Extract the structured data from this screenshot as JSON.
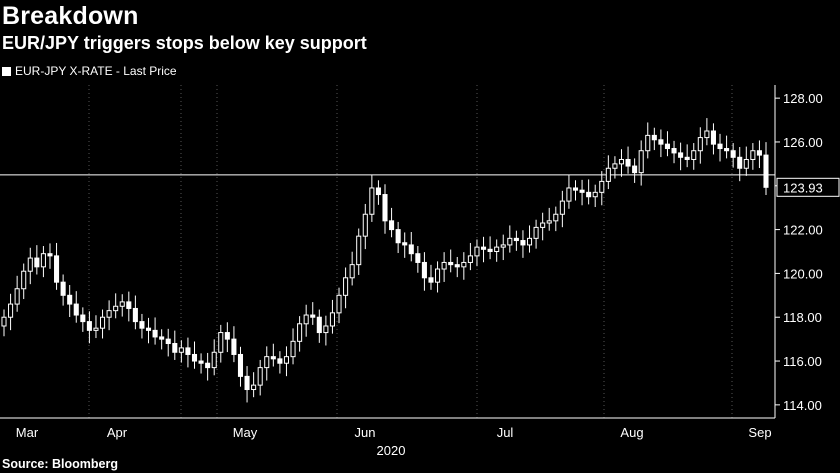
{
  "header": {
    "title": "Breakdown",
    "subtitle": "EUR/JPY triggers stops below key support"
  },
  "legend": {
    "label": "EUR-JPY X-RATE - Last Price"
  },
  "footer": {
    "source": "Source: Bloomberg"
  },
  "colors": {
    "background": "#000000",
    "foreground": "#ffffff",
    "grid": "#555555"
  },
  "chart_data": {
    "type": "candlestick",
    "title": "Breakdown",
    "subtitle": "EUR/JPY triggers stops below key support",
    "series_name": "EUR-JPY X-RATE - Last Price",
    "x_tick_labels": [
      "Mar",
      "Apr",
      "May",
      "Jun",
      "Jul",
      "Aug",
      "Sep"
    ],
    "x_year_label": "2020",
    "ylim": [
      113.4,
      128.6
    ],
    "y_ticks": [
      114,
      116,
      118,
      120,
      122,
      124,
      126,
      128
    ],
    "y_tick_labels": [
      "114.00",
      "116.00",
      "118.00",
      "120.00",
      "122.00",
      "124.00",
      "126.00",
      "128.00"
    ],
    "y_axis_side": "right",
    "grid": "vertical dotted",
    "support_level": 124.5,
    "last_price": 123.93,
    "last_price_label": "123.93",
    "candles_close": [
      118.0,
      118.6,
      119.3,
      120.1,
      120.7,
      120.3,
      120.9,
      120.8,
      119.6,
      119.0,
      118.6,
      118.1,
      117.8,
      117.4,
      117.5,
      118.0,
      118.3,
      118.5,
      118.7,
      118.4,
      117.8,
      117.5,
      117.4,
      117.1,
      117.0,
      116.8,
      116.4,
      116.6,
      116.3,
      116.0,
      115.9,
      115.7,
      116.4,
      117.3,
      117.0,
      116.3,
      115.3,
      114.7,
      114.9,
      115.7,
      116.2,
      116.1,
      115.9,
      116.2,
      116.9,
      117.7,
      118.1,
      118.0,
      117.3,
      117.6,
      118.2,
      119.0,
      119.8,
      120.4,
      121.7,
      122.7,
      123.9,
      123.6,
      122.4,
      122.0,
      121.4,
      121.3,
      120.9,
      120.5,
      119.8,
      119.6,
      120.2,
      120.5,
      120.4,
      120.3,
      120.5,
      120.8,
      121.2,
      121.1,
      121.0,
      121.2,
      121.3,
      121.6,
      121.5,
      121.3,
      121.6,
      122.1,
      122.3,
      122.4,
      122.7,
      123.3,
      123.9,
      123.8,
      123.7,
      123.5,
      123.7,
      124.2,
      124.8,
      125.0,
      125.2,
      124.9,
      124.6,
      125.6,
      126.3,
      126.1,
      125.9,
      125.7,
      125.5,
      125.3,
      125.2,
      125.6,
      126.2,
      126.5,
      125.9,
      125.7,
      125.6,
      125.3,
      124.8,
      125.2,
      125.6,
      125.4,
      123.93
    ],
    "candles_open": [
      117.6,
      118.0,
      118.6,
      119.3,
      120.1,
      120.7,
      120.3,
      120.9,
      120.8,
      119.6,
      119.0,
      118.6,
      118.1,
      117.8,
      117.4,
      117.5,
      118.0,
      118.3,
      118.5,
      118.7,
      118.4,
      117.8,
      117.5,
      117.4,
      117.1,
      117.0,
      116.8,
      116.4,
      116.6,
      116.3,
      116.0,
      115.9,
      115.7,
      116.4,
      117.3,
      117.0,
      116.3,
      115.3,
      114.7,
      114.9,
      115.7,
      116.2,
      116.1,
      115.9,
      116.2,
      116.9,
      117.7,
      118.1,
      118.0,
      117.3,
      117.6,
      118.2,
      119.0,
      119.8,
      120.4,
      121.7,
      122.7,
      123.9,
      123.6,
      122.4,
      122.0,
      121.4,
      121.3,
      120.9,
      120.5,
      119.8,
      119.6,
      120.2,
      120.5,
      120.4,
      120.3,
      120.5,
      120.8,
      121.2,
      121.1,
      121.0,
      121.2,
      121.3,
      121.6,
      121.5,
      121.3,
      121.6,
      122.1,
      122.3,
      122.4,
      122.7,
      123.3,
      123.9,
      123.8,
      123.7,
      123.5,
      123.7,
      124.2,
      124.8,
      125.0,
      125.2,
      124.9,
      124.6,
      125.6,
      126.3,
      126.1,
      125.9,
      125.7,
      125.5,
      125.3,
      125.2,
      125.6,
      126.2,
      126.5,
      125.9,
      125.7,
      125.6,
      125.3,
      124.8,
      125.2,
      125.6,
      125.4
    ]
  }
}
